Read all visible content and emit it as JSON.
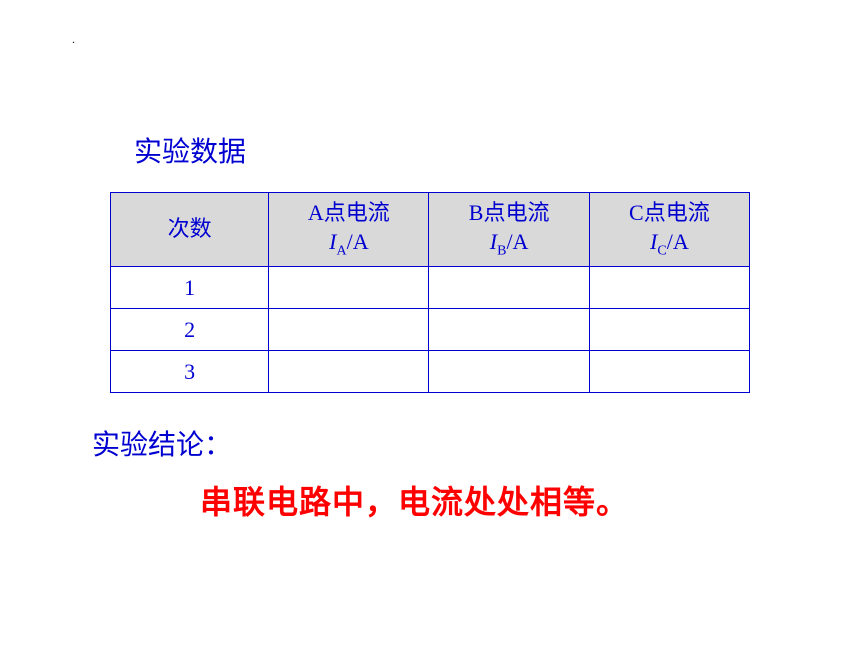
{
  "dot": ".",
  "title": "实验数据",
  "table": {
    "headers": [
      {
        "single": "次数"
      },
      {
        "line1": "A点电流",
        "var": "I",
        "sub": "A",
        "unit": "/A"
      },
      {
        "line1": "B点电流",
        "var": "I",
        "sub": "B",
        "unit": "/A"
      },
      {
        "line1": "C点电流",
        "var": "I",
        "sub": "C",
        "unit": "/A"
      }
    ],
    "rows": [
      [
        "1",
        "",
        "",
        ""
      ],
      [
        "2",
        "",
        "",
        ""
      ],
      [
        "3",
        "",
        "",
        ""
      ]
    ]
  },
  "conclusion_label": "实验结论：",
  "conclusion_text": "串联电路中，电流处处相等。",
  "colors": {
    "blue": "#0000d0",
    "red": "#ff0000",
    "header_bg": "#d9d9d9",
    "background": "#ffffff"
  }
}
